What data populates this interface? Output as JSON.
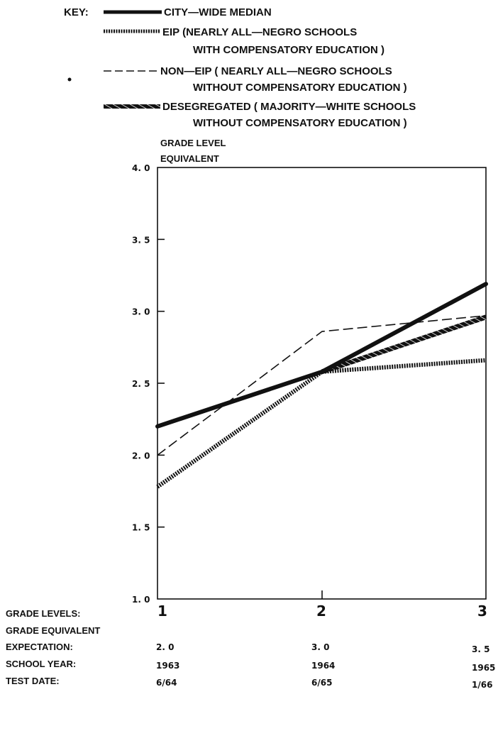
{
  "key": {
    "label": "KEY:",
    "entries": [
      {
        "line1": "CITY—WIDE MEDIAN",
        "line2": ""
      },
      {
        "line1": "EIP (NEARLY ALL—NEGRO SCHOOLS",
        "line2": "WITH COMPENSATORY EDUCATION )"
      },
      {
        "line1": "NON—EIP  ( NEARLY  ALL—NEGRO SCHOOLS",
        "line2": "WITHOUT COMPENSATORY EDUCATION )"
      },
      {
        "line1": "DESEGREGATED ( MAJORITY—WHITE SCHOOLS",
        "line2": "WITHOUT COMPENSATORY EDUCATION )"
      }
    ]
  },
  "chart_data": {
    "type": "line",
    "ylabel_line1": "GRADE LEVEL",
    "ylabel_line2": "EQUIVALENT",
    "ylim": [
      1.0,
      4.0
    ],
    "ytick_labels": [
      "4. 0",
      "3. 5",
      "3. 0",
      "2. 5",
      "2. 0",
      "1. 5",
      "1. 0"
    ],
    "x": [
      1,
      2,
      3
    ],
    "x_tick_labels": [
      "1",
      "2",
      "3"
    ],
    "series": [
      {
        "name": "CITY—WIDE MEDIAN",
        "values": [
          2.2,
          2.58,
          3.19
        ]
      },
      {
        "name": "EIP",
        "values": [
          1.78,
          2.58,
          2.66
        ]
      },
      {
        "name": "NON—EIP",
        "values": [
          2.0,
          2.86,
          2.97
        ]
      },
      {
        "name": "DESEGREGATED",
        "values": [
          null,
          2.58,
          2.96
        ]
      }
    ],
    "grid": false,
    "legend_position": "top"
  },
  "table": {
    "rows": [
      {
        "label": "GRADE LEVELS:",
        "values": []
      },
      {
        "label": "GRADE EQUIVALENT",
        "values": []
      },
      {
        "label": "EXPECTATION:",
        "values": [
          "2. 0",
          "3. 0",
          "3. 5"
        ]
      },
      {
        "label": "SCHOOL YEAR:",
        "values": [
          "1963",
          "1964",
          "1965"
        ]
      },
      {
        "label": "TEST DATE:",
        "values": [
          "6/64",
          "6/65",
          "1/66"
        ]
      }
    ]
  }
}
